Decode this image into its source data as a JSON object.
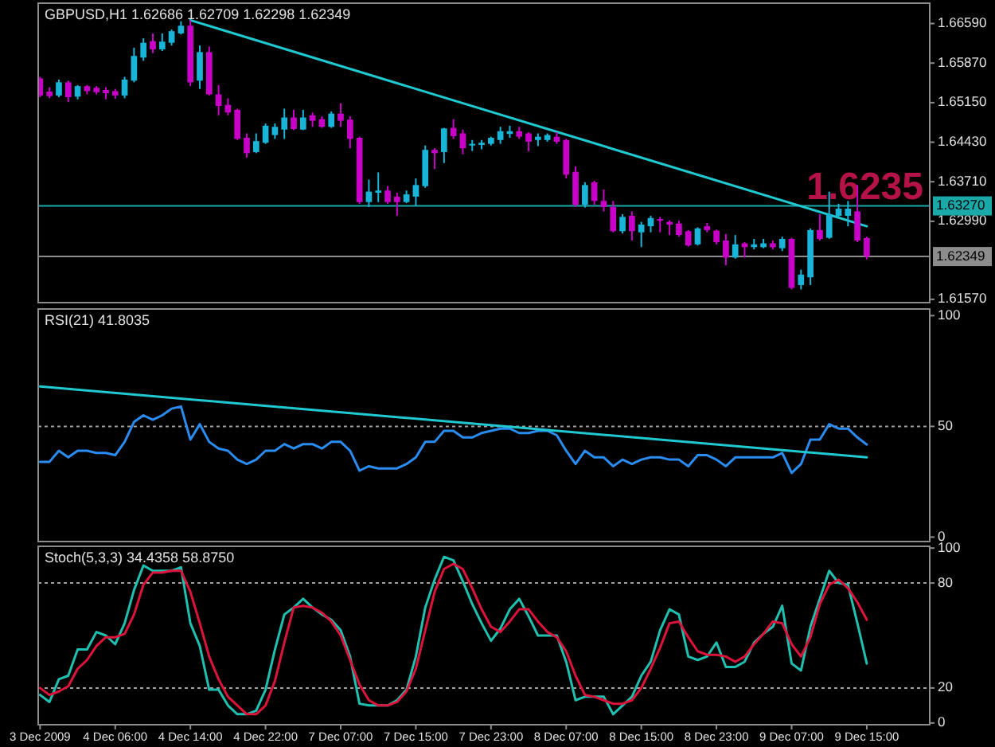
{
  "chart_data": [
    {
      "type": "candlestick",
      "title": "GBPUSD,H1  1.62686 1.62709 1.62298 1.62349",
      "tick_labels": "y",
      "categories": [
        "3 Dec 2009",
        null,
        null,
        null,
        null,
        null,
        null,
        null,
        "4 Dec 06:00",
        null,
        null,
        null,
        null,
        null,
        null,
        null,
        "4 Dec 14:00",
        null,
        null,
        null,
        null,
        null,
        null,
        null,
        "4 Dec 22:00",
        null,
        null,
        null,
        null,
        null,
        null,
        null,
        "7 Dec 07:00",
        null,
        null,
        null,
        null,
        null,
        null,
        null,
        "7 Dec 15:00",
        null,
        null,
        null,
        null,
        null,
        null,
        null,
        "7 Dec 23:00",
        null,
        null,
        null,
        null,
        null,
        null,
        null,
        "8 Dec 07:00",
        null,
        null,
        null,
        null,
        null,
        null,
        null,
        "8 Dec 15:00",
        null,
        null,
        null,
        null,
        null,
        null,
        null,
        "8 Dec 23:00",
        null,
        null,
        null,
        null,
        null,
        null,
        null,
        "9 Dec 07:00",
        null,
        null,
        null,
        null,
        null,
        null,
        null,
        "9 Dec 15:00"
      ],
      "ylim": [
        1.6151,
        1.6696
      ],
      "yticks": [
        {
          "value": 1.6659,
          "label": "1.66590"
        },
        {
          "value": 1.6587,
          "label": "1.65870"
        },
        {
          "value": 1.6515,
          "label": "1.65150"
        },
        {
          "value": 1.6443,
          "label": "1.64430"
        },
        {
          "value": 1.6371,
          "label": "1.63710"
        },
        {
          "value": 1.6299,
          "label": "1.62990"
        },
        {
          "value": 1.6157,
          "label": "1.61570"
        }
      ],
      "ohlc": [
        [
          1.6559,
          1.6562,
          1.6525,
          1.6528
        ],
        [
          1.6535,
          1.6543,
          1.6523,
          1.6527
        ],
        [
          1.6528,
          1.6557,
          1.6525,
          1.6552
        ],
        [
          1.6552,
          1.6555,
          1.6516,
          1.6525
        ],
        [
          1.6526,
          1.6547,
          1.6521,
          1.6545
        ],
        [
          1.6545,
          1.6547,
          1.653,
          1.6536
        ],
        [
          1.6542,
          1.6545,
          1.653,
          1.6534
        ],
        [
          1.6538,
          1.6543,
          1.6521,
          1.6532
        ],
        [
          1.6536,
          1.654,
          1.6522,
          1.6528
        ],
        [
          1.6528,
          1.6562,
          1.6523,
          1.6557
        ],
        [
          1.6555,
          1.6615,
          1.6552,
          1.66
        ],
        [
          1.6597,
          1.6632,
          1.6591,
          1.6624
        ],
        [
          1.6627,
          1.6641,
          1.6605,
          1.6612
        ],
        [
          1.6612,
          1.6641,
          1.6609,
          1.6626
        ],
        [
          1.6624,
          1.6648,
          1.6619,
          1.6645
        ],
        [
          1.6641,
          1.6663,
          1.6639,
          1.6655
        ],
        [
          1.6655,
          1.6665,
          1.6545,
          1.6552
        ],
        [
          1.6555,
          1.6619,
          1.654,
          1.6607
        ],
        [
          1.6607,
          1.6617,
          1.6528,
          1.653
        ],
        [
          1.653,
          1.6547,
          1.6492,
          1.6509
        ],
        [
          1.6511,
          1.6523,
          1.6492,
          1.6497
        ],
        [
          1.6502,
          1.6504,
          1.6447,
          1.6449
        ],
        [
          1.6451,
          1.6459,
          1.6415,
          1.6423
        ],
        [
          1.6425,
          1.6459,
          1.6423,
          1.6445
        ],
        [
          1.6442,
          1.6477,
          1.644,
          1.6473
        ],
        [
          1.6456,
          1.6477,
          1.6449,
          1.6471
        ],
        [
          1.6466,
          1.6504,
          1.6449,
          1.6488
        ],
        [
          1.6488,
          1.6502,
          1.6465,
          1.6467
        ],
        [
          1.6466,
          1.6502,
          1.6465,
          1.6488
        ],
        [
          1.6492,
          1.6497,
          1.6471,
          1.6482
        ],
        [
          1.6485,
          1.649,
          1.6469,
          1.6471
        ],
        [
          1.6471,
          1.6499,
          1.6469,
          1.6495
        ],
        [
          1.6495,
          1.6514,
          1.6471,
          1.6482
        ],
        [
          1.6484,
          1.649,
          1.6432,
          1.6449
        ],
        [
          1.6451,
          1.6453,
          1.6331,
          1.6334
        ],
        [
          1.6334,
          1.6375,
          1.6325,
          1.6353
        ],
        [
          1.6351,
          1.6388,
          1.6334,
          1.6355
        ],
        [
          1.6355,
          1.6363,
          1.6331,
          1.6334
        ],
        [
          1.6344,
          1.6351,
          1.6309,
          1.6334
        ],
        [
          1.6334,
          1.6355,
          1.6332,
          1.6348
        ],
        [
          1.6344,
          1.6377,
          1.6327,
          1.6365
        ],
        [
          1.6363,
          1.6437,
          1.636,
          1.6429
        ],
        [
          1.6429,
          1.6432,
          1.6394,
          1.6423
        ],
        [
          1.6425,
          1.6469,
          1.6405,
          1.6468
        ],
        [
          1.6469,
          1.6485,
          1.6449,
          1.6454
        ],
        [
          1.6459,
          1.6466,
          1.6421,
          1.6432
        ],
        [
          1.6437,
          1.6447,
          1.6427,
          1.644
        ],
        [
          1.6438,
          1.6447,
          1.643,
          1.6442
        ],
        [
          1.644,
          1.6453,
          1.6437,
          1.6451
        ],
        [
          1.6447,
          1.6471,
          1.644,
          1.6463
        ],
        [
          1.6458,
          1.6473,
          1.6451,
          1.6463
        ],
        [
          1.6463,
          1.6471,
          1.6449,
          1.6453
        ],
        [
          1.6459,
          1.6461,
          1.6426,
          1.6444
        ],
        [
          1.6447,
          1.6459,
          1.6436,
          1.6453
        ],
        [
          1.6447,
          1.6459,
          1.6444,
          1.6456
        ],
        [
          1.6453,
          1.6461,
          1.644,
          1.6444
        ],
        [
          1.6447,
          1.6449,
          1.6377,
          1.6384
        ],
        [
          1.6389,
          1.6399,
          1.6325,
          1.6329
        ],
        [
          1.6329,
          1.637,
          1.6324,
          1.6365
        ],
        [
          1.637,
          1.6373,
          1.6329,
          1.6336
        ],
        [
          1.6336,
          1.6357,
          1.6317,
          1.6325
        ],
        [
          1.6325,
          1.6336,
          1.6279,
          1.6281
        ],
        [
          1.6281,
          1.6312,
          1.6277,
          1.6307
        ],
        [
          1.6309,
          1.6317,
          1.6264,
          1.6281
        ],
        [
          1.6279,
          1.6298,
          1.6252,
          1.6293
        ],
        [
          1.629,
          1.6309,
          1.6279,
          1.6305
        ],
        [
          1.6303,
          1.6307,
          1.6279,
          1.63
        ],
        [
          1.6298,
          1.6301,
          1.6274,
          1.6293
        ],
        [
          1.6295,
          1.63,
          1.6271,
          1.6274
        ],
        [
          1.6281,
          1.6283,
          1.6253,
          1.6255
        ],
        [
          1.6257,
          1.6288,
          1.6255,
          1.6286
        ],
        [
          1.629,
          1.6296,
          1.6279,
          1.6283
        ],
        [
          1.6282,
          1.6284,
          1.6257,
          1.6261
        ],
        [
          1.6264,
          1.6276,
          1.6219,
          1.6233
        ],
        [
          1.6233,
          1.6274,
          1.6231,
          1.6257
        ],
        [
          1.6259,
          1.6261,
          1.6233,
          1.6252
        ],
        [
          1.6252,
          1.6267,
          1.6248,
          1.6257
        ],
        [
          1.6252,
          1.6267,
          1.625,
          1.6259
        ],
        [
          1.6259,
          1.6264,
          1.6248,
          1.6252
        ],
        [
          1.625,
          1.6271,
          1.6245,
          1.6267
        ],
        [
          1.6267,
          1.6269,
          1.6175,
          1.6178
        ],
        [
          1.6183,
          1.6211,
          1.6175,
          1.6202
        ],
        [
          1.6197,
          1.6286,
          1.6183,
          1.6283
        ],
        [
          1.6283,
          1.6312,
          1.6264,
          1.6267
        ],
        [
          1.6269,
          1.6353,
          1.6267,
          1.6312
        ],
        [
          1.6309,
          1.6331,
          1.6307,
          1.6322
        ],
        [
          1.6309,
          1.6336,
          1.629,
          1.6322
        ],
        [
          1.6317,
          1.6365,
          1.6261,
          1.6264
        ],
        [
          1.62686,
          1.62709,
          1.62298,
          1.62349
        ]
      ],
      "colors": [
        "#c800c8",
        "#c800c8",
        "#19b5d8",
        "#c800c8",
        "#19b5d8",
        "#c800c8",
        "#c800c8",
        "#c800c8",
        "#c800c8",
        "#19b5d8",
        "#19b5d8",
        "#19b5d8",
        "#c800c8",
        "#19b5d8",
        "#19b5d8",
        "#19b5d8",
        "#c800c8",
        "#19b5d8",
        "#c800c8",
        "#c800c8",
        "#c800c8",
        "#c800c8",
        "#c800c8",
        "#19b5d8",
        "#19b5d8",
        "#19b5d8",
        "#19b5d8",
        "#c800c8",
        "#19b5d8",
        "#c800c8",
        "#c800c8",
        "#19b5d8",
        "#c800c8",
        "#c800c8",
        "#c800c8",
        "#19b5d8",
        "#19b5d8",
        "#c800c8",
        "#c800c8",
        "#19b5d8",
        "#19b5d8",
        "#19b5d8",
        "#c800c8",
        "#19b5d8",
        "#c800c8",
        "#c800c8",
        "#19b5d8",
        "#19b5d8",
        "#19b5d8",
        "#19b5d8",
        "#19b5d8",
        "#c800c8",
        "#c800c8",
        "#19b5d8",
        "#19b5d8",
        "#c800c8",
        "#c800c8",
        "#c800c8",
        "#19b5d8",
        "#c800c8",
        "#c800c8",
        "#c800c8",
        "#19b5d8",
        "#c800c8",
        "#19b5d8",
        "#19b5d8",
        "#c800c8",
        "#c800c8",
        "#c800c8",
        "#c800c8",
        "#19b5d8",
        "#c800c8",
        "#c800c8",
        "#c800c8",
        "#19b5d8",
        "#c800c8",
        "#19b5d8",
        "#19b5d8",
        "#c800c8",
        "#19b5d8",
        "#c800c8",
        "#19b5d8",
        "#19b5d8",
        "#c800c8",
        "#19b5d8",
        "#19b5d8",
        "#19b5d8",
        "#c800c8",
        "#c800c8"
      ],
      "series": [
        {
          "type": "line",
          "x": [
            "4 Dec 14:00",
            "9 Dec 15:00"
          ],
          "values": [
            1.6665,
            1.629
          ],
          "color": "#20c8d0"
        }
      ],
      "ref_lines": [
        {
          "axis": "y",
          "value": 1.6327,
          "label": "1.63270",
          "color": "#1aa8a8",
          "line_style": "solid"
        },
        {
          "axis": "y",
          "value": 1.62349,
          "label": "1.62349",
          "color": "#8c8c8c",
          "line_style": "solid"
        }
      ],
      "annotations": [
        {
          "text": "1.6235",
          "y": 1.6358
        }
      ]
    },
    {
      "type": "line",
      "title": "RSI(21) 41.8035",
      "tick_labels": "y",
      "categories": [
        "3 Dec 2009",
        null,
        null,
        null,
        null,
        null,
        null,
        null,
        "4 Dec 06:00",
        null,
        null,
        null,
        null,
        null,
        null,
        null,
        "4 Dec 14:00",
        null,
        null,
        null,
        null,
        null,
        null,
        null,
        "4 Dec 22:00",
        null,
        null,
        null,
        null,
        null,
        null,
        null,
        "7 Dec 07:00",
        null,
        null,
        null,
        null,
        null,
        null,
        null,
        "7 Dec 15:00",
        null,
        null,
        null,
        null,
        null,
        null,
        null,
        "7 Dec 23:00",
        null,
        null,
        null,
        null,
        null,
        null,
        null,
        "8 Dec 07:00",
        null,
        null,
        null,
        null,
        null,
        null,
        null,
        "8 Dec 15:00",
        null,
        null,
        null,
        null,
        null,
        null,
        null,
        "8 Dec 23:00",
        null,
        null,
        null,
        null,
        null,
        null,
        null,
        "9 Dec 07:00",
        null,
        null,
        null,
        null,
        null,
        null,
        null,
        "9 Dec 15:00"
      ],
      "ylim": [
        -2,
        103
      ],
      "yticks": [
        0,
        50,
        100
      ],
      "series": [
        {
          "values": [
            34,
            34,
            39,
            36,
            39,
            39,
            38,
            38,
            37,
            43,
            52,
            55,
            53,
            55,
            58,
            59,
            44,
            51,
            43,
            40,
            39,
            35,
            33,
            35,
            39,
            39,
            42,
            40,
            42,
            42,
            40,
            43,
            43,
            39,
            30,
            32,
            31,
            31,
            31,
            33,
            36,
            43,
            43,
            48,
            48,
            45,
            45,
            47,
            48,
            49,
            49,
            47,
            47,
            48,
            48,
            46,
            39,
            33,
            39,
            36,
            36,
            32,
            35,
            33,
            35,
            36,
            36,
            35,
            35,
            32,
            37,
            37,
            35,
            32,
            36,
            36,
            36,
            36,
            36,
            38,
            29,
            33,
            44,
            44,
            51,
            49,
            49,
            45,
            41.8
          ],
          "color": "#2a8cf0"
        },
        {
          "x": [
            "3 Dec 2009",
            "9 Dec 15:00"
          ],
          "values": [
            68,
            36
          ],
          "color": "#20c8d0"
        }
      ],
      "ref_lines": [
        {
          "axis": "y",
          "value": 50,
          "color": "#a0a0a0",
          "line_style": "dotted"
        }
      ]
    },
    {
      "type": "line",
      "title": "Stoch(5,3,3) 34.4358 58.8750",
      "categories": [
        "3 Dec 2009",
        null,
        null,
        null,
        null,
        null,
        null,
        null,
        "4 Dec 06:00",
        null,
        null,
        null,
        null,
        null,
        null,
        null,
        "4 Dec 14:00",
        null,
        null,
        null,
        null,
        null,
        null,
        null,
        "4 Dec 22:00",
        null,
        null,
        null,
        null,
        null,
        null,
        null,
        "7 Dec 07:00",
        null,
        null,
        null,
        null,
        null,
        null,
        null,
        "7 Dec 15:00",
        null,
        null,
        null,
        null,
        null,
        null,
        null,
        "7 Dec 23:00",
        null,
        null,
        null,
        null,
        null,
        null,
        null,
        "8 Dec 07:00",
        null,
        null,
        null,
        null,
        null,
        null,
        null,
        "8 Dec 15:00",
        null,
        null,
        null,
        null,
        null,
        null,
        null,
        "8 Dec 23:00",
        null,
        null,
        null,
        null,
        null,
        null,
        null,
        "9 Dec 07:00",
        null,
        null,
        null,
        null,
        null,
        null,
        null,
        "9 Dec 15:00"
      ],
      "ylim": [
        -1,
        101
      ],
      "yticks": [
        0,
        20,
        80,
        100
      ],
      "series": [
        {
          "values": [
            16,
            12,
            25,
            27,
            42,
            42,
            52,
            50,
            45,
            57,
            76,
            90,
            87,
            87,
            87,
            89,
            57,
            44,
            19,
            19,
            10,
            5,
            5,
            7,
            19,
            42,
            62,
            66,
            71,
            66,
            62,
            59,
            53,
            38,
            11,
            10,
            10,
            10,
            13,
            19,
            38,
            66,
            82,
            95,
            93,
            81,
            68,
            57,
            47,
            54,
            65,
            71,
            61,
            50,
            50,
            50,
            35,
            13,
            15,
            15,
            15,
            5,
            10,
            15,
            27,
            35,
            53,
            65,
            62,
            38,
            36,
            38,
            46,
            32,
            32,
            35,
            46,
            51,
            55,
            67,
            34,
            30,
            55,
            71,
            87,
            80,
            79,
            57,
            34
          ],
          "color": "#20c0b0"
        },
        {
          "values": [
            20,
            16,
            18,
            21,
            31,
            36,
            44,
            49,
            49,
            51,
            62,
            79,
            86,
            86,
            87,
            87,
            75,
            57,
            38,
            25,
            15,
            10,
            5,
            5,
            10,
            24,
            46,
            66,
            67,
            66,
            63,
            58,
            50,
            36,
            22,
            13,
            10,
            10,
            12,
            18,
            31,
            53,
            75,
            88,
            91,
            88,
            77,
            65,
            55,
            52,
            58,
            65,
            65,
            58,
            52,
            49,
            41,
            27,
            16,
            15,
            13,
            11,
            11,
            13,
            20,
            31,
            43,
            57,
            58,
            49,
            41,
            39,
            39,
            38,
            35,
            38,
            45,
            51,
            58,
            57,
            45,
            38,
            49,
            68,
            79,
            82,
            77,
            69,
            59
          ],
          "color": "#dc143c"
        }
      ],
      "ref_lines": [
        {
          "axis": "y",
          "value": 20,
          "color": "#a0a0a0",
          "line_style": "dotted"
        },
        {
          "axis": "y",
          "value": 80,
          "color": "#a0a0a0",
          "line_style": "dotted"
        }
      ]
    }
  ]
}
